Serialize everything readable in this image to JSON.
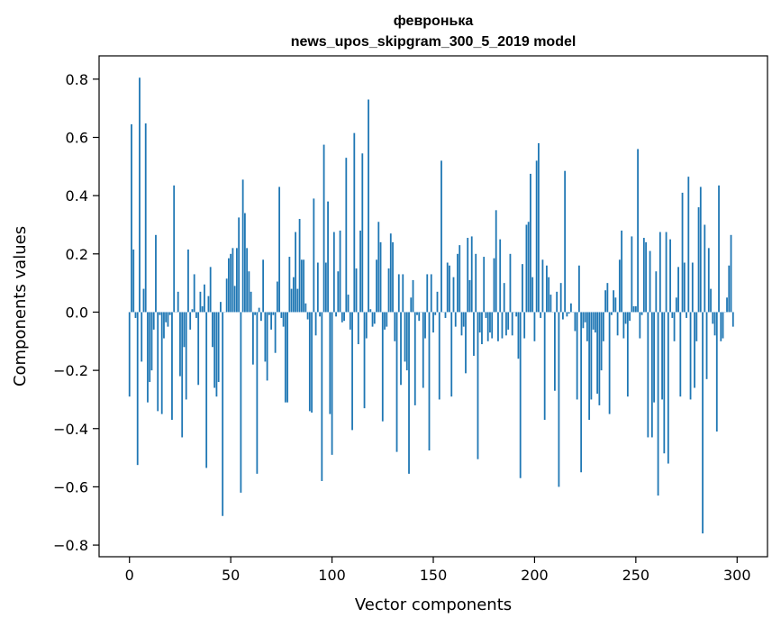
{
  "chart_data": {
    "type": "bar",
    "title": "февронька",
    "subtitle": "news_upos_skipgram_300_5_2019 model",
    "xlabel": "Vector components",
    "ylabel": "Components values",
    "xlim": [
      -15,
      315
    ],
    "ylim": [
      -0.84,
      0.88
    ],
    "xticks": [
      0,
      50,
      100,
      150,
      200,
      250,
      300
    ],
    "yticks": [
      -0.8,
      -0.6,
      -0.4,
      -0.2,
      0.0,
      0.2,
      0.4,
      0.6,
      0.8
    ],
    "ytick_labels": [
      "−0.8",
      "−0.6",
      "−0.4",
      "−0.2",
      "0.0",
      "0.2",
      "0.4",
      "0.6",
      "0.8"
    ],
    "grid": false,
    "bar_color": "#1f77b4",
    "values": [
      -0.29,
      0.645,
      0.215,
      -0.02,
      -0.525,
      0.805,
      -0.17,
      0.08,
      0.648,
      -0.31,
      -0.24,
      -0.2,
      -0.06,
      0.265,
      -0.34,
      -0.01,
      -0.35,
      -0.09,
      -0.035,
      -0.05,
      -0.01,
      -0.37,
      0.435,
      0.0,
      0.07,
      -0.22,
      -0.43,
      -0.12,
      -0.3,
      0.215,
      -0.06,
      0.01,
      0.13,
      -0.02,
      -0.25,
      0.07,
      0.02,
      0.095,
      -0.535,
      0.055,
      0.155,
      -0.12,
      -0.26,
      -0.29,
      -0.24,
      0.035,
      -0.7,
      0.0,
      0.115,
      0.185,
      0.2,
      0.22,
      0.09,
      0.22,
      0.325,
      -0.62,
      0.455,
      0.34,
      0.22,
      0.14,
      0.07,
      -0.18,
      -0.01,
      -0.555,
      0.015,
      -0.03,
      0.18,
      -0.17,
      -0.235,
      -0.01,
      -0.06,
      -0.01,
      -0.14,
      0.105,
      0.43,
      -0.02,
      -0.05,
      -0.31,
      -0.31,
      0.19,
      0.08,
      0.12,
      0.275,
      0.08,
      0.32,
      0.18,
      0.18,
      0.03,
      -0.025,
      -0.34,
      -0.345,
      0.39,
      -0.08,
      0.17,
      -0.015,
      -0.58,
      0.575,
      0.17,
      0.38,
      -0.35,
      -0.49,
      0.275,
      -0.015,
      0.14,
      0.28,
      -0.035,
      -0.03,
      0.53,
      0.06,
      -0.06,
      -0.405,
      0.615,
      0.15,
      -0.11,
      0.28,
      0.545,
      -0.33,
      -0.09,
      0.73,
      0.01,
      -0.05,
      -0.04,
      0.18,
      0.31,
      0.24,
      -0.375,
      -0.06,
      -0.05,
      0.15,
      0.27,
      0.24,
      -0.1,
      -0.48,
      0.13,
      -0.25,
      0.13,
      -0.17,
      -0.2,
      -0.555,
      0.05,
      0.11,
      -0.32,
      -0.01,
      -0.03,
      0.0,
      -0.26,
      -0.09,
      0.13,
      -0.475,
      0.13,
      -0.07,
      -0.01,
      0.07,
      -0.3,
      0.52,
      0.0,
      -0.02,
      0.17,
      0.16,
      -0.29,
      0.12,
      -0.05,
      0.2,
      0.23,
      -0.08,
      -0.05,
      -0.21,
      0.255,
      0.11,
      0.26,
      -0.15,
      0.2,
      -0.505,
      -0.07,
      -0.11,
      0.19,
      -0.02,
      -0.1,
      -0.07,
      -0.09,
      0.185,
      0.35,
      -0.1,
      0.25,
      -0.09,
      0.1,
      -0.08,
      -0.06,
      0.2,
      -0.08,
      0.0,
      -0.015,
      -0.16,
      -0.57,
      0.165,
      -0.09,
      0.3,
      0.31,
      0.475,
      0.12,
      -0.1,
      0.52,
      0.58,
      -0.02,
      0.18,
      -0.37,
      0.16,
      0.12,
      0.06,
      0.0,
      -0.27,
      0.07,
      -0.6,
      0.1,
      -0.025,
      0.485,
      -0.015,
      -0.005,
      0.03,
      0.0,
      -0.065,
      -0.3,
      0.16,
      -0.55,
      -0.055,
      -0.035,
      -0.1,
      -0.37,
      -0.3,
      -0.06,
      -0.07,
      -0.28,
      -0.32,
      -0.2,
      -0.1,
      0.075,
      0.1,
      -0.35,
      -0.01,
      0.075,
      0.05,
      -0.08,
      0.18,
      0.28,
      -0.09,
      -0.04,
      -0.29,
      -0.03,
      0.26,
      0.02,
      0.02,
      0.56,
      -0.09,
      -0.01,
      0.255,
      0.24,
      -0.43,
      0.21,
      -0.43,
      -0.31,
      0.14,
      -0.63,
      0.275,
      -0.3,
      -0.485,
      0.275,
      -0.52,
      0.25,
      -0.02,
      -0.1,
      0.05,
      0.155,
      -0.29,
      0.41,
      0.17,
      -0.02,
      0.465,
      -0.3,
      0.17,
      -0.26,
      -0.1,
      0.36,
      0.43,
      -0.76,
      0.3,
      -0.23,
      0.22,
      0.08,
      -0.04,
      -0.08,
      -0.41,
      0.435,
      -0.1,
      -0.09,
      0.0,
      0.05,
      0.16,
      0.265,
      -0.05
    ]
  }
}
